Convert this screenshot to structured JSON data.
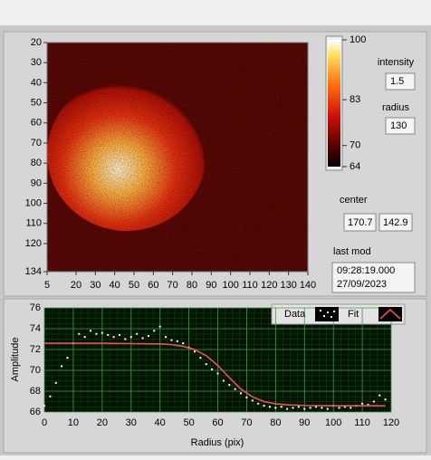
{
  "image_panel": {
    "xlim": [
      5,
      140
    ],
    "ylim": [
      20,
      134
    ],
    "xticks": [
      5,
      20,
      30,
      40,
      50,
      60,
      70,
      80,
      90,
      100,
      110,
      120,
      130,
      140
    ],
    "yticks": [
      20,
      30,
      40,
      50,
      60,
      70,
      80,
      90,
      100,
      110,
      120,
      134
    ]
  },
  "colorbar": {
    "lim": [
      64,
      100
    ],
    "ticks": [
      64,
      70,
      83,
      100
    ]
  },
  "controls": {
    "intensity": {
      "label": "intensity",
      "value": "1.5"
    },
    "radius": {
      "label": "radius",
      "value": "130"
    },
    "center": {
      "label": "center",
      "x": "170.7",
      "y": "142.9"
    },
    "last_mod": {
      "label": "last mod",
      "time": "09:28:19.000",
      "date": "27/09/2023"
    }
  },
  "chart_data": {
    "type": "line",
    "xlabel": "Radius (pix)",
    "ylabel": "Amplitude",
    "xlim": [
      0,
      120
    ],
    "ylim": [
      66,
      76
    ],
    "xticks": [
      0,
      10,
      20,
      30,
      40,
      50,
      60,
      70,
      80,
      90,
      100,
      110,
      120
    ],
    "yticks": [
      66,
      68,
      70,
      72,
      74,
      76
    ],
    "grid": true,
    "series": [
      {
        "name": "Data",
        "color": "#ffffff",
        "mode": "markers",
        "x": [
          0,
          2,
          4,
          6,
          8,
          10,
          12,
          14,
          16,
          18,
          20,
          22,
          24,
          26,
          28,
          30,
          32,
          34,
          36,
          38,
          40,
          42,
          44,
          46,
          48,
          50,
          52,
          54,
          56,
          58,
          60,
          62,
          64,
          66,
          68,
          70,
          72,
          74,
          76,
          78,
          80,
          82,
          84,
          86,
          88,
          90,
          92,
          94,
          96,
          98,
          100,
          102,
          104,
          106,
          108,
          110,
          112,
          114,
          116,
          118
        ],
        "values": [
          66.6,
          67.5,
          68.8,
          70.4,
          71.2,
          72.6,
          73.5,
          73.2,
          73.8,
          73.5,
          73.6,
          73.4,
          73.2,
          73.4,
          73.0,
          73.2,
          73.5,
          73.1,
          73.3,
          73.8,
          74.2,
          73.2,
          72.9,
          72.8,
          72.6,
          72.2,
          71.8,
          71.2,
          70.6,
          70.1,
          69.7,
          69.0,
          68.6,
          68.2,
          67.8,
          67.4,
          67.1,
          66.8,
          66.6,
          66.5,
          66.4,
          66.5,
          66.3,
          66.4,
          66.5,
          66.3,
          66.4,
          66.5,
          66.4,
          66.3,
          66.6,
          66.4,
          66.5,
          66.4,
          66.6,
          66.8,
          66.7,
          67.0,
          67.6,
          67.2
        ]
      },
      {
        "name": "Fit",
        "color": "#f05050",
        "mode": "line",
        "x": [
          0,
          20,
          40,
          44,
          48,
          52,
          56,
          60,
          64,
          68,
          72,
          76,
          80,
          84,
          90,
          100,
          118
        ],
        "values": [
          72.6,
          72.6,
          72.54,
          72.47,
          72.31,
          72.0,
          71.41,
          70.47,
          69.3,
          68.21,
          67.45,
          67.01,
          66.79,
          66.69,
          66.63,
          66.6,
          66.6
        ]
      }
    ]
  }
}
